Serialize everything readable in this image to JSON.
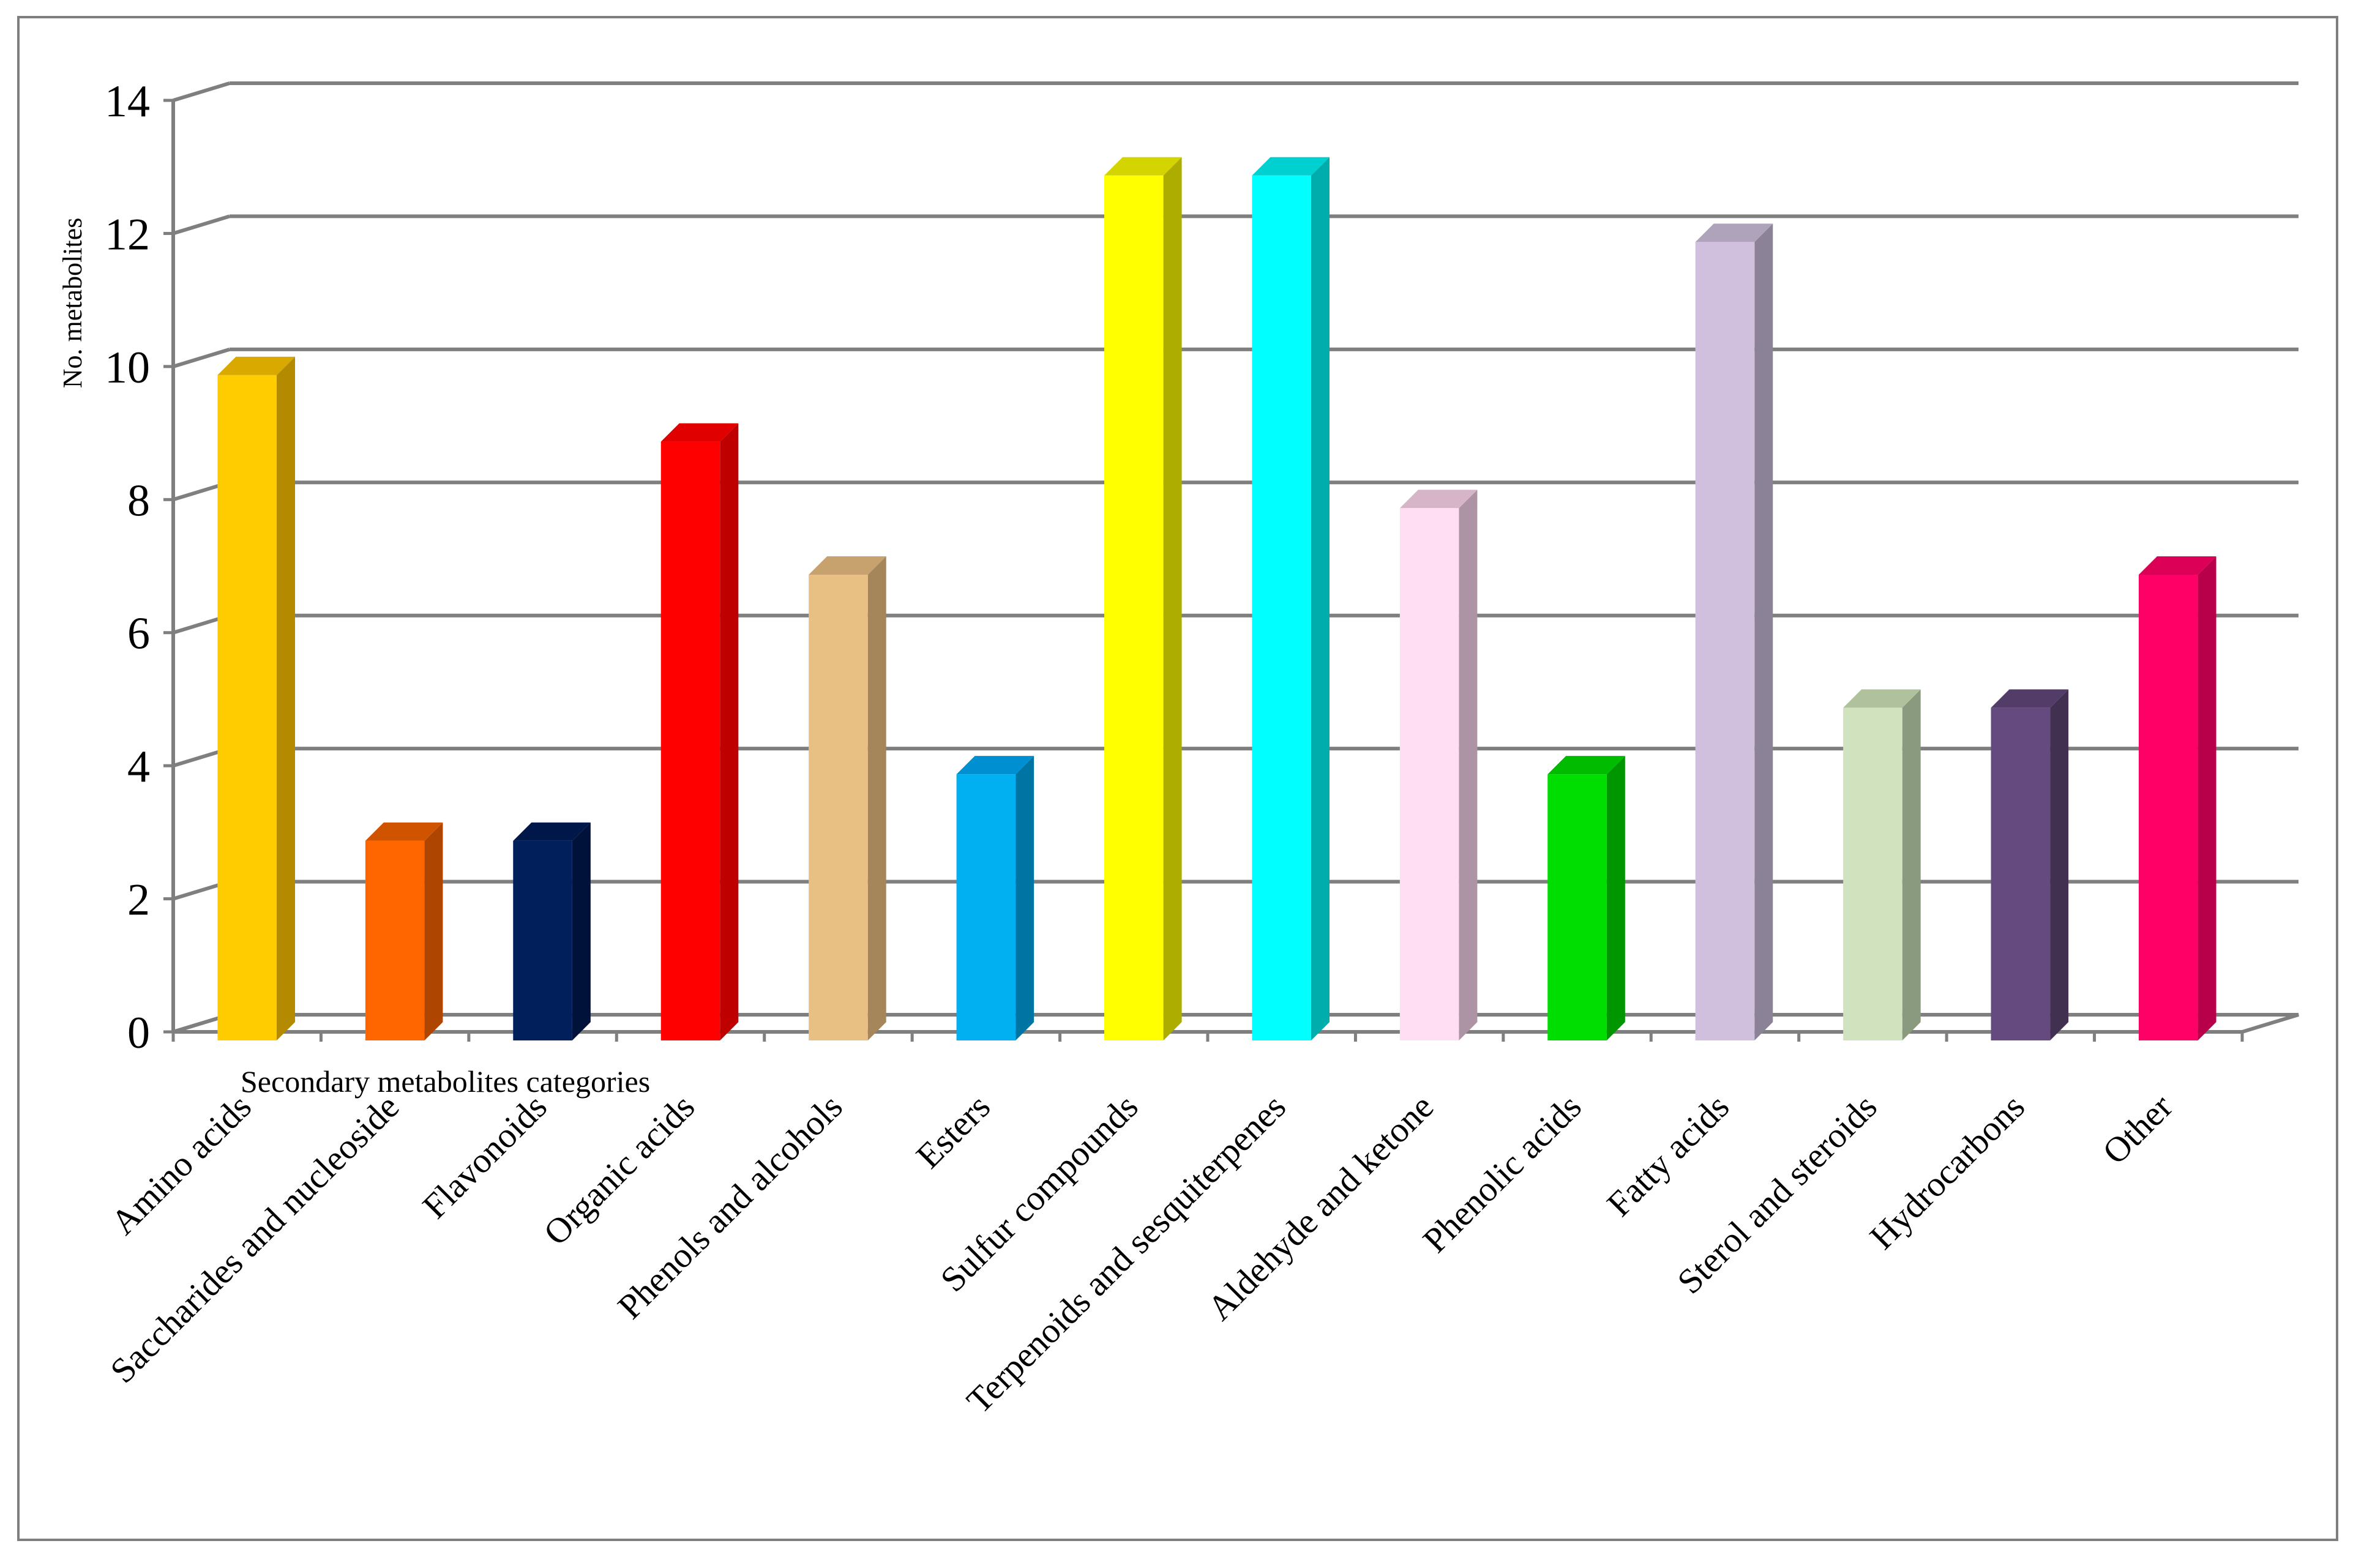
{
  "chart_data": {
    "type": "bar",
    "title": "",
    "xlabel": "Secondary metabolites categories",
    "ylabel": "No. metabolites",
    "ylim": [
      0,
      14
    ],
    "yticks": [
      "0",
      "2",
      "4",
      "6",
      "8",
      "10",
      "12",
      "14"
    ],
    "grid": true,
    "legend": "none",
    "categories": [
      "Amino acids",
      "Saccharides and nucleoside",
      "Flavonoids",
      "Organic acids",
      "Phenols and alcohols",
      "Esters",
      "Sulfur compounds",
      "Terpenoids and sesquiterpenes",
      "Aldehyde and ketone",
      "Phenolic acids",
      "Fatty acids",
      "Sterol and steroids",
      "Hydrocarbons",
      "Other"
    ],
    "values": [
      10,
      3,
      3,
      9,
      7,
      4,
      13,
      13,
      8,
      4,
      12,
      5,
      5,
      7
    ],
    "colors": [
      "#FFCC00",
      "#FF6600",
      "#001F5B",
      "#FF0000",
      "#E9C083",
      "#00B0F0",
      "#FFFF00",
      "#00FFFF",
      "#FFDDF2",
      "#00DD00",
      "#D0C0DD",
      "#D0E3BE",
      "#644A7E",
      "#FF0066"
    ],
    "side_colors": [
      "#B38A00",
      "#AE4500",
      "#00113A",
      "#BE0000",
      "#A5855A",
      "#0074A3",
      "#ADAD00",
      "#00ADAD",
      "#AD94A4",
      "#009600",
      "#8C8297",
      "#8A9A7E",
      "#41304F",
      "#B8004A"
    ],
    "top_colors": [
      "#D9A900",
      "#D05400",
      "#00174A",
      "#E00000",
      "#C8A26E",
      "#008FD0",
      "#D4D400",
      "#00D0D0",
      "#D7B5C8",
      "#00BB00",
      "#AFA3BB",
      "#AFC29D",
      "#533C67",
      "#DC0057"
    ],
    "gridline_color": "#7f7f7f"
  }
}
